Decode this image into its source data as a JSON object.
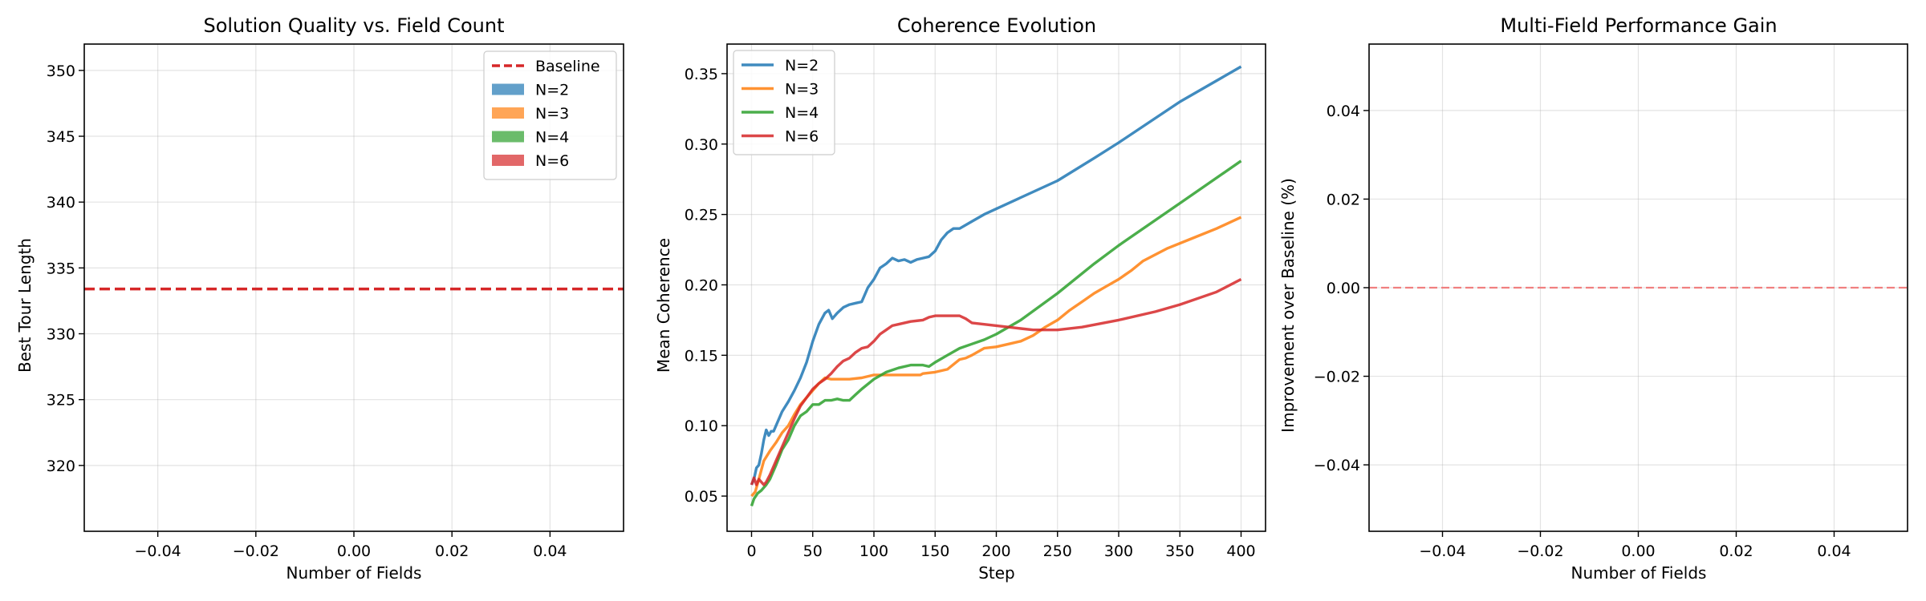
{
  "chart_data": [
    {
      "type": "bar",
      "title": "Solution Quality vs. Field Count",
      "xlabel": "Number of Fields",
      "ylabel": "Best Tour Length",
      "xlim": [
        -0.055,
        0.055
      ],
      "ylim": [
        315,
        352
      ],
      "xticks": [
        -0.04,
        -0.02,
        0.0,
        0.02,
        0.04
      ],
      "xtick_labels": [
        "−0.04",
        "−0.02",
        "0.00",
        "0.02",
        "0.04"
      ],
      "yticks": [
        320,
        325,
        330,
        335,
        340,
        345,
        350
      ],
      "ytick_labels": [
        "320",
        "325",
        "330",
        "335",
        "340",
        "345",
        "350"
      ],
      "baseline": {
        "name": "Baseline",
        "value": 333.4,
        "color": "#d62728",
        "style": "dashed"
      },
      "series": [
        {
          "name": "N=2",
          "values": [],
          "color": "#1f77b4"
        },
        {
          "name": "N=3",
          "values": [],
          "color": "#ff7f0e"
        },
        {
          "name": "N=4",
          "values": [],
          "color": "#2ca02c"
        },
        {
          "name": "N=6",
          "values": [],
          "color": "#d62728"
        }
      ],
      "grid": true,
      "legend": "top-right"
    },
    {
      "type": "line",
      "title": "Coherence Evolution",
      "xlabel": "Step",
      "ylabel": "Mean Coherence",
      "xlim": [
        -20,
        420
      ],
      "ylim": [
        0.025,
        0.371
      ],
      "xticks": [
        0,
        50,
        100,
        150,
        200,
        250,
        300,
        350,
        400
      ],
      "xtick_labels": [
        "0",
        "50",
        "100",
        "150",
        "200",
        "250",
        "300",
        "350",
        "400"
      ],
      "yticks": [
        0.05,
        0.1,
        0.15,
        0.2,
        0.25,
        0.3,
        0.35
      ],
      "ytick_labels": [
        "0.05",
        "0.10",
        "0.15",
        "0.20",
        "0.25",
        "0.30",
        "0.35"
      ],
      "series": [
        {
          "name": "N=2",
          "color": "#1f77b4",
          "x": [
            0,
            2,
            4,
            6,
            8,
            10,
            12,
            14,
            16,
            18,
            20,
            25,
            30,
            35,
            40,
            45,
            50,
            55,
            60,
            63,
            66,
            70,
            75,
            80,
            85,
            90,
            95,
            100,
            105,
            110,
            115,
            120,
            125,
            130,
            135,
            140,
            145,
            150,
            155,
            160,
            165,
            170,
            180,
            190,
            200,
            220,
            250,
            280,
            300,
            350,
            400
          ],
          "y": [
            0.058,
            0.062,
            0.07,
            0.072,
            0.08,
            0.09,
            0.097,
            0.093,
            0.096,
            0.096,
            0.1,
            0.11,
            0.117,
            0.125,
            0.134,
            0.145,
            0.16,
            0.172,
            0.18,
            0.182,
            0.176,
            0.18,
            0.184,
            0.186,
            0.187,
            0.188,
            0.198,
            0.204,
            0.212,
            0.215,
            0.219,
            0.217,
            0.218,
            0.216,
            0.218,
            0.219,
            0.22,
            0.224,
            0.232,
            0.237,
            0.24,
            0.24,
            0.245,
            0.25,
            0.254,
            0.262,
            0.274,
            0.29,
            0.301,
            0.33,
            0.355
          ]
        },
        {
          "name": "N=3",
          "color": "#ff7f0e",
          "x": [
            0,
            3,
            6,
            10,
            15,
            20,
            25,
            30,
            35,
            40,
            45,
            50,
            55,
            60,
            65,
            70,
            80,
            90,
            100,
            110,
            120,
            130,
            138,
            140,
            150,
            160,
            170,
            175,
            180,
            190,
            200,
            210,
            220,
            230,
            240,
            250,
            260,
            270,
            280,
            290,
            300,
            305,
            310,
            320,
            340,
            360,
            380,
            400
          ],
          "y": [
            0.05,
            0.053,
            0.062,
            0.075,
            0.082,
            0.088,
            0.095,
            0.1,
            0.108,
            0.115,
            0.12,
            0.125,
            0.13,
            0.134,
            0.133,
            0.133,
            0.133,
            0.134,
            0.136,
            0.136,
            0.136,
            0.136,
            0.136,
            0.137,
            0.138,
            0.14,
            0.147,
            0.148,
            0.15,
            0.155,
            0.156,
            0.158,
            0.16,
            0.164,
            0.17,
            0.175,
            0.182,
            0.188,
            0.194,
            0.199,
            0.204,
            0.207,
            0.21,
            0.217,
            0.226,
            0.233,
            0.24,
            0.248
          ]
        },
        {
          "name": "N=4",
          "color": "#2ca02c",
          "x": [
            0,
            2,
            5,
            8,
            12,
            15,
            20,
            25,
            30,
            35,
            40,
            45,
            50,
            55,
            60,
            65,
            70,
            75,
            80,
            85,
            90,
            100,
            110,
            120,
            130,
            135,
            140,
            145,
            150,
            160,
            170,
            180,
            190,
            200,
            220,
            250,
            280,
            300,
            350,
            400
          ],
          "y": [
            0.043,
            0.048,
            0.052,
            0.054,
            0.058,
            0.062,
            0.072,
            0.083,
            0.09,
            0.1,
            0.107,
            0.11,
            0.115,
            0.115,
            0.118,
            0.118,
            0.119,
            0.118,
            0.118,
            0.122,
            0.126,
            0.133,
            0.138,
            0.141,
            0.143,
            0.143,
            0.143,
            0.142,
            0.145,
            0.15,
            0.155,
            0.158,
            0.161,
            0.165,
            0.175,
            0.194,
            0.215,
            0.228,
            0.258,
            0.288
          ]
        },
        {
          "name": "N=6",
          "color": "#d62728",
          "x": [
            0,
            2,
            4,
            6,
            8,
            10,
            12,
            15,
            20,
            25,
            30,
            35,
            40,
            45,
            50,
            55,
            60,
            65,
            70,
            75,
            80,
            85,
            90,
            95,
            100,
            105,
            110,
            115,
            120,
            130,
            140,
            145,
            150,
            160,
            170,
            175,
            180,
            190,
            200,
            210,
            220,
            230,
            240,
            250,
            270,
            300,
            330,
            350,
            380,
            400
          ],
          "y": [
            0.058,
            0.063,
            0.058,
            0.062,
            0.06,
            0.058,
            0.06,
            0.065,
            0.075,
            0.085,
            0.095,
            0.105,
            0.114,
            0.12,
            0.126,
            0.13,
            0.133,
            0.137,
            0.142,
            0.146,
            0.148,
            0.152,
            0.155,
            0.156,
            0.16,
            0.165,
            0.168,
            0.171,
            0.172,
            0.174,
            0.175,
            0.177,
            0.178,
            0.178,
            0.178,
            0.176,
            0.173,
            0.172,
            0.171,
            0.17,
            0.169,
            0.168,
            0.168,
            0.168,
            0.17,
            0.175,
            0.181,
            0.186,
            0.195,
            0.204
          ]
        }
      ],
      "grid": true,
      "legend": "top-left"
    },
    {
      "type": "bar",
      "title": "Multi-Field Performance Gain",
      "xlabel": "Number of Fields",
      "ylabel": "Improvement over Baseline (%)",
      "xlim": [
        -0.055,
        0.055
      ],
      "ylim": [
        -0.055,
        0.055
      ],
      "xticks": [
        -0.04,
        -0.02,
        0.0,
        0.02,
        0.04
      ],
      "xtick_labels": [
        "−0.04",
        "−0.02",
        "0.00",
        "0.02",
        "0.04"
      ],
      "yticks": [
        -0.04,
        -0.02,
        0.0,
        0.02,
        0.04
      ],
      "ytick_labels": [
        "−0.04",
        "−0.02",
        "0.00",
        "0.02",
        "0.04"
      ],
      "reference_line": {
        "value": 0,
        "color": "#f08080",
        "style": "dashed"
      },
      "values": [],
      "grid": true
    }
  ]
}
